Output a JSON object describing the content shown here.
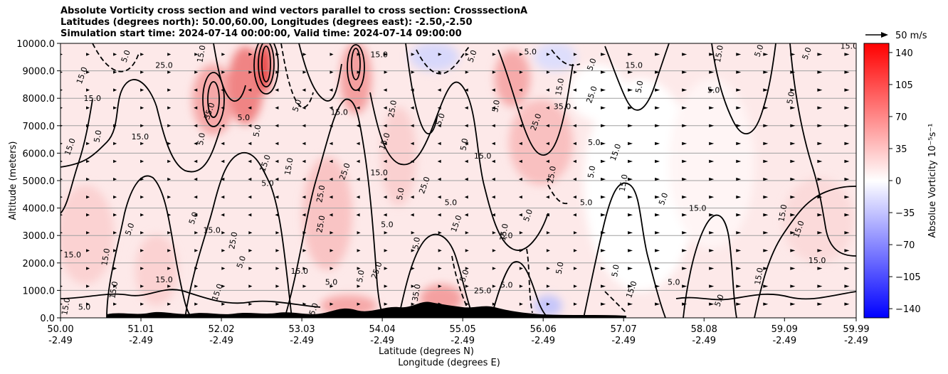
{
  "title_lines": [
    "Absolute Vorticity cross section and wind vectors parallel to cross section: CrosssectionA",
    "Latitudes (degrees north): 50.00,60.00, Longitudes (degrees east): -2.50,-2.50",
    "Simulation start time: 2024-07-14 00:00:00, Valid time: 2024-07-14 09:00:00"
  ],
  "chart_data": {
    "type": "heatmap",
    "subtype": "vertical cross section with contours and wind vectors",
    "ylabel": "Altitude (meters)",
    "xlabel_line1": "Latitude (degrees N)",
    "xlabel_line2": "Longitude (degrees E)",
    "ylim": [
      0,
      10000
    ],
    "y_ticks": [
      0,
      1000,
      2000,
      3000,
      4000,
      5000,
      6000,
      7000,
      8000,
      9000,
      10000
    ],
    "y_tick_labels": [
      "0.0",
      "1000.0",
      "2000.0",
      "3000.0",
      "4000.0",
      "5000.0",
      "6000.0",
      "7000.0",
      "8000.0",
      "9000.0",
      "10000.0"
    ],
    "xlim": [
      50.0,
      59.99
    ],
    "x_ticks_lat": [
      50.0,
      51.01,
      52.02,
      53.03,
      54.04,
      55.05,
      56.06,
      57.07,
      58.08,
      59.09,
      59.99
    ],
    "x_tick_labels_lat": [
      "50.00",
      "51.01",
      "52.02",
      "53.03",
      "54.04",
      "55.05",
      "56.06",
      "57.07",
      "58.08",
      "59.09",
      "59.99"
    ],
    "x_tick_labels_lon": [
      "-2.49",
      "-2.49",
      "-2.49",
      "-2.49",
      "-2.49",
      "-2.49",
      "-2.49",
      "-2.49",
      "-2.49",
      "-2.49",
      "-2.49"
    ],
    "grid": "horizontal",
    "colorbar": {
      "label": "Absolue Vorticity 10⁻⁵s⁻¹",
      "min": -150,
      "max": 150,
      "ticks": [
        140,
        105,
        70,
        35,
        0,
        -35,
        -70,
        -105,
        -140
      ],
      "tick_labels": [
        "140",
        "105",
        "70",
        "35",
        "0",
        "−35",
        "−70",
        "−105",
        "−140"
      ],
      "colormap": "bwr"
    },
    "quiver_key": {
      "label": "50 m/s",
      "value": 50
    },
    "contour_labels": [
      {
        "text": "5.0",
        "lat": 50.85,
        "alt": 9500
      },
      {
        "text": "25.0",
        "lat": 51.3,
        "alt": 9100
      },
      {
        "text": "15.0",
        "lat": 51.8,
        "alt": 9600
      },
      {
        "text": "15.0",
        "lat": 50.3,
        "alt": 8800
      },
      {
        "text": "15.0",
        "lat": 50.4,
        "alt": 7900
      },
      {
        "text": "5.0",
        "lat": 50.5,
        "alt": 6600
      },
      {
        "text": "15.0",
        "lat": 50.15,
        "alt": 6200
      },
      {
        "text": "15.0",
        "lat": 51.0,
        "alt": 6500
      },
      {
        "text": "5.0",
        "lat": 51.8,
        "alt": 6500
      },
      {
        "text": "35.0",
        "lat": 51.9,
        "alt": 7500
      },
      {
        "text": "5.0",
        "lat": 52.3,
        "alt": 7200
      },
      {
        "text": "5.0",
        "lat": 52.5,
        "alt": 6800
      },
      {
        "text": "15.0",
        "lat": 52.6,
        "alt": 5600
      },
      {
        "text": "5.0",
        "lat": 52.6,
        "alt": 4800
      },
      {
        "text": "15.0",
        "lat": 52.9,
        "alt": 5500
      },
      {
        "text": "5.0",
        "lat": 53.0,
        "alt": 7700
      },
      {
        "text": "15.0",
        "lat": 53.5,
        "alt": 7400
      },
      {
        "text": "25.0",
        "lat": 53.3,
        "alt": 4500
      },
      {
        "text": "25.0",
        "lat": 53.6,
        "alt": 5300
      },
      {
        "text": "15.0",
        "lat": 54.0,
        "alt": 9500
      },
      {
        "text": "25.0",
        "lat": 54.2,
        "alt": 7600
      },
      {
        "text": "15.0",
        "lat": 54.1,
        "alt": 6400
      },
      {
        "text": "15.0",
        "lat": 54.0,
        "alt": 5200
      },
      {
        "text": "5.0",
        "lat": 54.3,
        "alt": 4500
      },
      {
        "text": "25.0",
        "lat": 54.6,
        "alt": 4800
      },
      {
        "text": "5.0",
        "lat": 54.9,
        "alt": 4100
      },
      {
        "text": "5.0",
        "lat": 55.1,
        "alt": 6300
      },
      {
        "text": "5.0",
        "lat": 54.8,
        "alt": 7200
      },
      {
        "text": "15.0",
        "lat": 55.3,
        "alt": 5800
      },
      {
        "text": "5.0",
        "lat": 55.5,
        "alt": 7700
      },
      {
        "text": "25.0",
        "lat": 56.0,
        "alt": 7100
      },
      {
        "text": "35.0",
        "lat": 56.3,
        "alt": 7600
      },
      {
        "text": "25.0",
        "lat": 56.2,
        "alt": 5200
      },
      {
        "text": "5.0",
        "lat": 55.2,
        "alt": 9500
      },
      {
        "text": "5.0",
        "lat": 55.9,
        "alt": 9600
      },
      {
        "text": "15.0",
        "lat": 56.3,
        "alt": 8400
      },
      {
        "text": "5.0",
        "lat": 56.7,
        "alt": 9200
      },
      {
        "text": "15.0",
        "lat": 57.2,
        "alt": 9100
      },
      {
        "text": "5.0",
        "lat": 57.3,
        "alt": 8400
      },
      {
        "text": "25.0",
        "lat": 56.7,
        "alt": 8100
      },
      {
        "text": "5.0",
        "lat": 56.7,
        "alt": 6300
      },
      {
        "text": "5.0",
        "lat": 56.7,
        "alt": 5300
      },
      {
        "text": "15.0",
        "lat": 57.0,
        "alt": 6000
      },
      {
        "text": "5.0",
        "lat": 56.6,
        "alt": 4100
      },
      {
        "text": "15.0",
        "lat": 57.1,
        "alt": 4900
      },
      {
        "text": "5.0",
        "lat": 57.6,
        "alt": 4300
      },
      {
        "text": "15.0",
        "lat": 58.0,
        "alt": 3900
      },
      {
        "text": "15.0",
        "lat": 58.3,
        "alt": 9600
      },
      {
        "text": "5.0",
        "lat": 58.8,
        "alt": 9700
      },
      {
        "text": "5.0",
        "lat": 58.2,
        "alt": 8200
      },
      {
        "text": "5.0",
        "lat": 59.2,
        "alt": 8000
      },
      {
        "text": "5.0",
        "lat": 59.4,
        "alt": 9600
      },
      {
        "text": "15.0",
        "lat": 59.9,
        "alt": 9800
      },
      {
        "text": "15.0",
        "lat": 59.1,
        "alt": 3800
      },
      {
        "text": "15.0",
        "lat": 59.3,
        "alt": 3200
      },
      {
        "text": "15.0",
        "lat": 59.5,
        "alt": 2000
      },
      {
        "text": "15.0",
        "lat": 58.8,
        "alt": 1500
      },
      {
        "text": "5.0",
        "lat": 58.3,
        "alt": 600
      },
      {
        "text": "5.0",
        "lat": 57.7,
        "alt": 1200
      },
      {
        "text": "5.0",
        "lat": 57.0,
        "alt": 1700
      },
      {
        "text": "15.0",
        "lat": 57.2,
        "alt": 1000
      },
      {
        "text": "15.0",
        "lat": 50.15,
        "alt": 2200
      },
      {
        "text": "15.0",
        "lat": 50.6,
        "alt": 2200
      },
      {
        "text": "5.0",
        "lat": 50.9,
        "alt": 3200
      },
      {
        "text": "15.0",
        "lat": 51.3,
        "alt": 1300
      },
      {
        "text": "15.0",
        "lat": 50.7,
        "alt": 1000
      },
      {
        "text": "5.0",
        "lat": 51.7,
        "alt": 3600
      },
      {
        "text": "15.0",
        "lat": 51.9,
        "alt": 3100
      },
      {
        "text": "25.0",
        "lat": 52.2,
        "alt": 2800
      },
      {
        "text": "5.0",
        "lat": 52.3,
        "alt": 2000
      },
      {
        "text": "15.0",
        "lat": 53.0,
        "alt": 1600
      },
      {
        "text": "25.0",
        "lat": 53.3,
        "alt": 3400
      },
      {
        "text": "15.0",
        "lat": 52.0,
        "alt": 900
      },
      {
        "text": "5.0",
        "lat": 53.4,
        "alt": 1200
      },
      {
        "text": "5.0",
        "lat": 53.8,
        "alt": 1500
      },
      {
        "text": "25.0",
        "lat": 54.0,
        "alt": 1700
      },
      {
        "text": "5.0",
        "lat": 54.1,
        "alt": 3300
      },
      {
        "text": "5.0",
        "lat": 54.5,
        "alt": 2700
      },
      {
        "text": "15.0",
        "lat": 55.0,
        "alt": 3400
      },
      {
        "text": "5.0",
        "lat": 55.6,
        "alt": 2900
      },
      {
        "text": "15.0",
        "lat": 55.6,
        "alt": 3100
      },
      {
        "text": "5.0",
        "lat": 55.1,
        "alt": 1500
      },
      {
        "text": "5.0",
        "lat": 55.6,
        "alt": 1100
      },
      {
        "text": "5.0",
        "lat": 56.3,
        "alt": 1800
      },
      {
        "text": "5.0",
        "lat": 55.9,
        "alt": 3700
      },
      {
        "text": "25.0",
        "lat": 55.3,
        "alt": 900
      },
      {
        "text": "35.0",
        "lat": 54.5,
        "alt": 900
      },
      {
        "text": "25.0",
        "lat": 53.2,
        "alt": 200
      },
      {
        "text": "5.0",
        "lat": 50.3,
        "alt": 300
      },
      {
        "text": "15.0",
        "lat": 50.1,
        "alt": 400
      }
    ]
  }
}
